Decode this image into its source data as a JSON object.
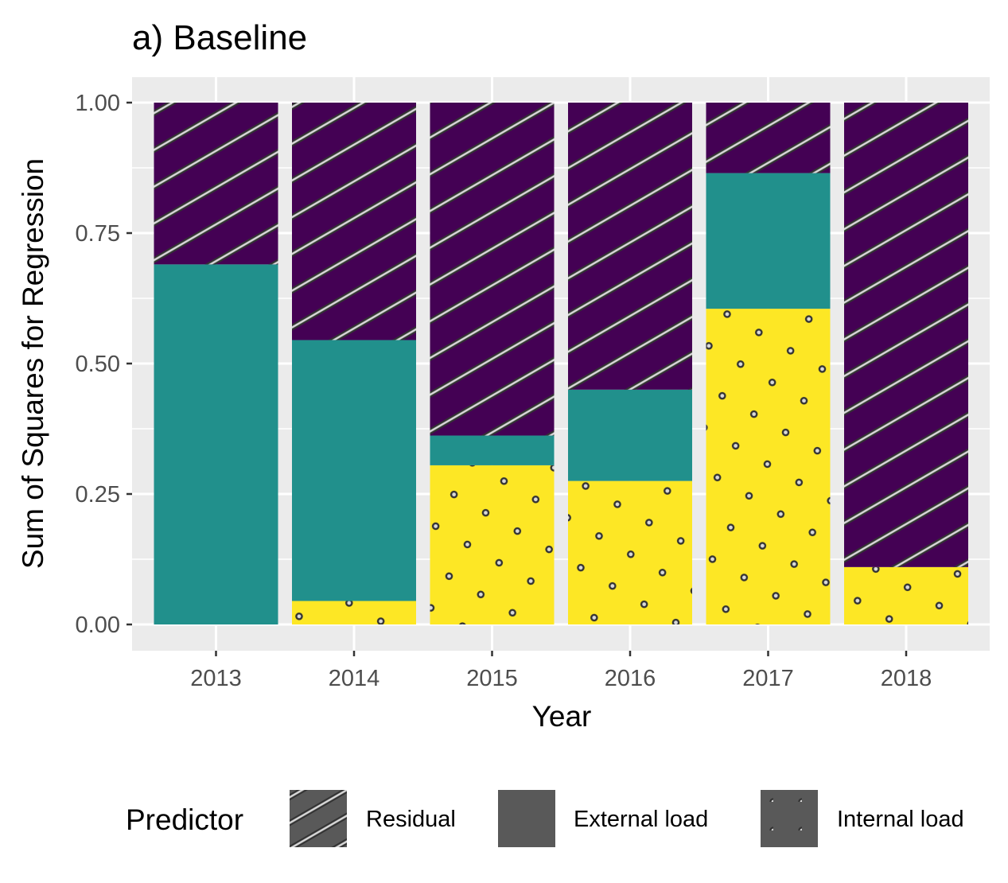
{
  "chart_data": {
    "type": "bar",
    "stacked": true,
    "title": "a) Baseline",
    "xlabel": "Year",
    "ylabel": "Sum of Squares for Regression",
    "categories": [
      "2013",
      "2014",
      "2015",
      "2016",
      "2017",
      "2018"
    ],
    "ylim": [
      0,
      1
    ],
    "yticks": [
      0,
      0.25,
      0.5,
      0.75,
      1
    ],
    "ytick_labels": [
      "0.00",
      "0.25",
      "0.50",
      "0.75",
      "1.00"
    ],
    "grid": true,
    "legend_position": "bottom",
    "legend_title": "Predictor",
    "series": [
      {
        "name": "Internal load",
        "values": [
          0.0,
          0.045,
          0.305,
          0.275,
          0.605,
          0.11
        ],
        "color": "#FDE725",
        "pattern": "dots"
      },
      {
        "name": "External load",
        "values": [
          0.69,
          0.5,
          0.057,
          0.175,
          0.26,
          0.0
        ],
        "color": "#21908C",
        "pattern": "none"
      },
      {
        "name": "Residual",
        "values": [
          0.31,
          0.455,
          0.638,
          0.55,
          0.135,
          0.89
        ],
        "color": "#440154",
        "pattern": "stripes"
      }
    ],
    "legend_entries": [
      {
        "label": "Residual",
        "pattern": "stripes"
      },
      {
        "label": "External load",
        "pattern": "none"
      },
      {
        "label": "Internal load",
        "pattern": "dots"
      }
    ]
  }
}
